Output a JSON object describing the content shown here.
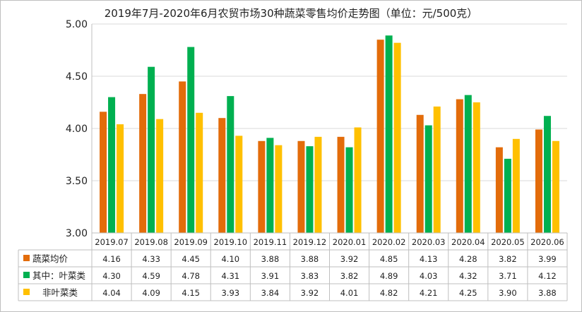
{
  "chart_data": {
    "type": "bar",
    "title": "2019年7月-2020年6月农贸市场30种蔬菜零售均价走势图（单位：元/500克）",
    "categories": [
      "2019.07",
      "2019.08",
      "2019.09",
      "2019.10",
      "2019.11",
      "2019.12",
      "2020.01",
      "2020.02",
      "2020.03",
      "2020.04",
      "2020.05",
      "2020.06"
    ],
    "ylim": [
      3.0,
      5.0
    ],
    "yticks": [
      "3.00",
      "3.50",
      "4.00",
      "4.50",
      "5.00"
    ],
    "grid": true,
    "legend_placement": "data-table",
    "series": [
      {
        "name": "蔬菜均价",
        "color": "#E36C0A",
        "values": [
          4.16,
          4.33,
          4.45,
          4.1,
          3.88,
          3.88,
          3.92,
          4.85,
          4.13,
          4.28,
          3.82,
          3.99
        ]
      },
      {
        "name": "其中：叶菜类",
        "color": "#00B050",
        "values": [
          4.3,
          4.59,
          4.78,
          4.31,
          3.91,
          3.83,
          3.82,
          4.89,
          4.03,
          4.32,
          3.71,
          4.12
        ]
      },
      {
        "name": "非叶菜类",
        "color": "#FFC000",
        "values": [
          4.04,
          4.09,
          4.15,
          3.93,
          3.84,
          3.92,
          4.01,
          4.82,
          4.21,
          4.25,
          3.9,
          3.88
        ]
      }
    ],
    "table_values": [
      [
        "4.16",
        "4.33",
        "4.45",
        "4.10",
        "3.88",
        "3.88",
        "3.92",
        "4.85",
        "4.13",
        "4.28",
        "3.82",
        "3.99"
      ],
      [
        "4.30",
        "4.59",
        "4.78",
        "4.31",
        "3.91",
        "3.83",
        "3.82",
        "4.89",
        "4.03",
        "4.32",
        "3.71",
        "4.12"
      ],
      [
        "4.04",
        "4.09",
        "4.15",
        "3.93",
        "3.84",
        "3.92",
        "4.01",
        "4.82",
        "4.21",
        "4.25",
        "3.90",
        "3.88"
      ]
    ]
  }
}
